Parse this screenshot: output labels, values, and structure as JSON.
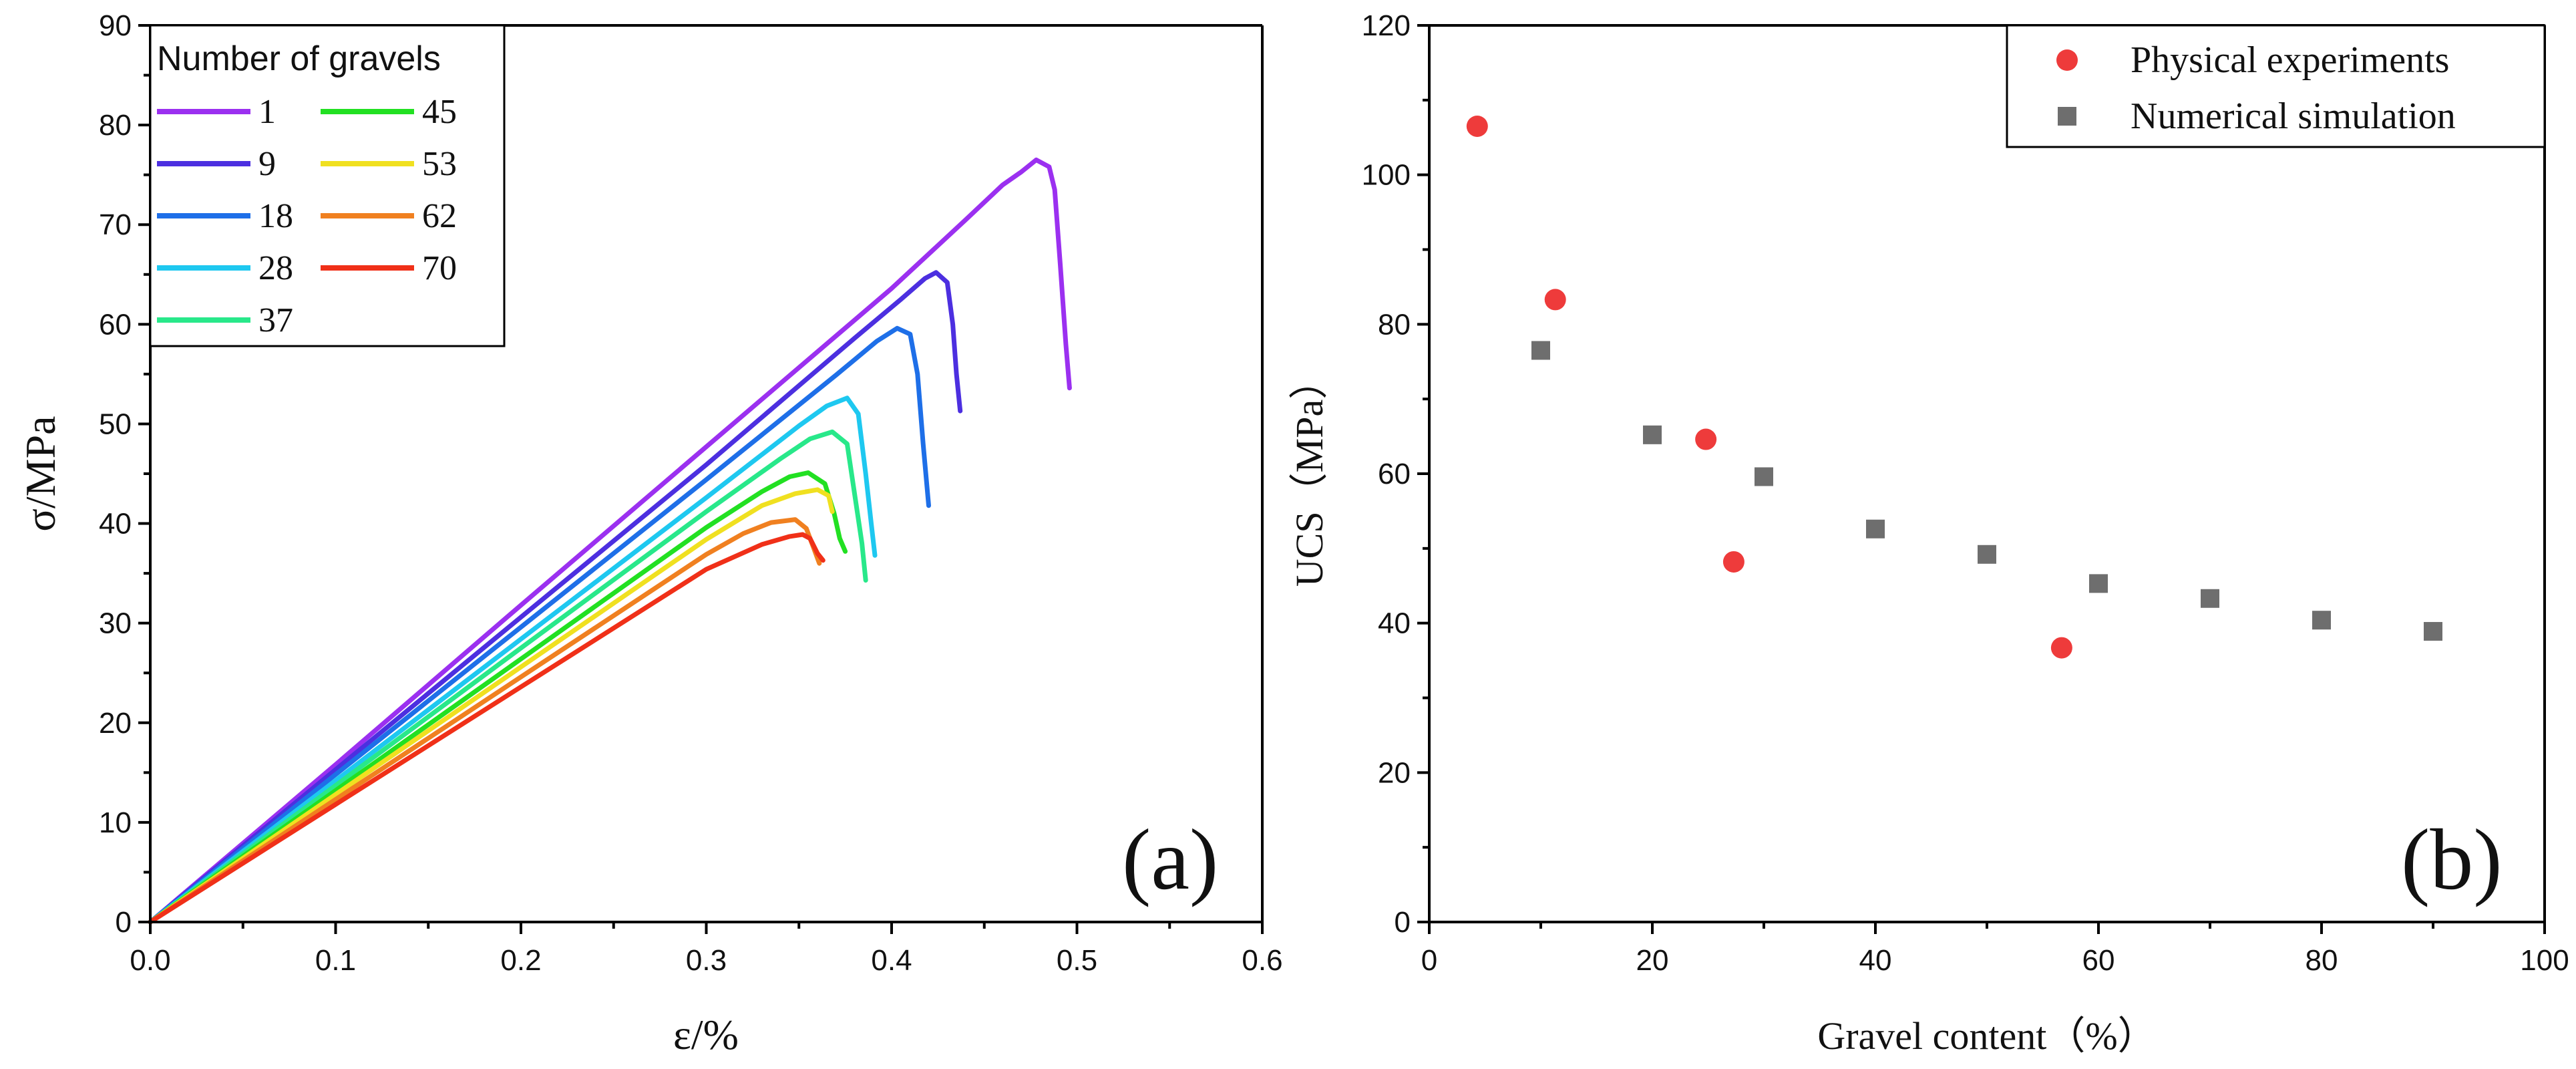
{
  "chart_data": [
    {
      "type": "line",
      "panel_label": "(a)",
      "xlabel": "ε/%",
      "ylabel": "σ/MPa",
      "xlim": [
        0.0,
        0.6
      ],
      "ylim": [
        0,
        90
      ],
      "xticks": [
        "0.0",
        "0.1",
        "0.2",
        "0.3",
        "0.4",
        "0.5",
        "0.6"
      ],
      "yticks": [
        "0",
        "10",
        "20",
        "30",
        "40",
        "50",
        "60",
        "70",
        "80",
        "90"
      ],
      "legend_title": "Number of gravels",
      "legend_position": "top-left",
      "series": [
        {
          "name": "1",
          "color": "#9B30F0",
          "points": [
            [
              0,
              0
            ],
            [
              0.1,
              15.8
            ],
            [
              0.2,
              31.8
            ],
            [
              0.3,
              47.7
            ],
            [
              0.4,
              63.6
            ],
            [
              0.44,
              70.5
            ],
            [
              0.46,
              74.0
            ],
            [
              0.47,
              75.3
            ],
            [
              0.478,
              76.5
            ],
            [
              0.485,
              75.8
            ],
            [
              0.488,
              73.5
            ],
            [
              0.491,
              66.0
            ],
            [
              0.494,
              58.0
            ],
            [
              0.496,
              53.6
            ]
          ]
        },
        {
          "name": "9",
          "color": "#4C2FE0",
          "points": [
            [
              0,
              0
            ],
            [
              0.1,
              15.3
            ],
            [
              0.2,
              30.6
            ],
            [
              0.3,
              45.9
            ],
            [
              0.38,
              58.6
            ],
            [
              0.405,
              62.5
            ],
            [
              0.418,
              64.6
            ],
            [
              0.424,
              65.2
            ],
            [
              0.43,
              64.2
            ],
            [
              0.433,
              60.0
            ],
            [
              0.435,
              55.0
            ],
            [
              0.437,
              51.3
            ]
          ]
        },
        {
          "name": "18",
          "color": "#1E6FE8",
          "points": [
            [
              0,
              0
            ],
            [
              0.1,
              14.8
            ],
            [
              0.2,
              29.6
            ],
            [
              0.3,
              44.4
            ],
            [
              0.37,
              54.9
            ],
            [
              0.392,
              58.3
            ],
            [
              0.403,
              59.6
            ],
            [
              0.41,
              59.0
            ],
            [
              0.414,
              55.0
            ],
            [
              0.417,
              48.0
            ],
            [
              0.42,
              41.8
            ]
          ]
        },
        {
          "name": "28",
          "color": "#1EC8F0",
          "points": [
            [
              0,
              0
            ],
            [
              0.1,
              14.2
            ],
            [
              0.2,
              28.4
            ],
            [
              0.3,
              42.6
            ],
            [
              0.35,
              49.8
            ],
            [
              0.365,
              51.8
            ],
            [
              0.376,
              52.6
            ],
            [
              0.382,
              51.0
            ],
            [
              0.386,
              45.0
            ],
            [
              0.389,
              40.0
            ],
            [
              0.391,
              36.8
            ]
          ]
        },
        {
          "name": "37",
          "color": "#28E88A",
          "points": [
            [
              0,
              0
            ],
            [
              0.1,
              13.7
            ],
            [
              0.2,
              27.5
            ],
            [
              0.3,
              41.2
            ],
            [
              0.34,
              46.5
            ],
            [
              0.356,
              48.5
            ],
            [
              0.368,
              49.2
            ],
            [
              0.376,
              48.0
            ],
            [
              0.38,
              43.0
            ],
            [
              0.384,
              38.0
            ],
            [
              0.386,
              34.3
            ]
          ]
        },
        {
          "name": "45",
          "color": "#22E022",
          "points": [
            [
              0,
              0
            ],
            [
              0.1,
              13.2
            ],
            [
              0.2,
              26.4
            ],
            [
              0.3,
              39.6
            ],
            [
              0.33,
              43.2
            ],
            [
              0.345,
              44.7
            ],
            [
              0.355,
              45.1
            ],
            [
              0.364,
              44.0
            ],
            [
              0.369,
              41.0
            ],
            [
              0.372,
              38.5
            ],
            [
              0.375,
              37.2
            ]
          ]
        },
        {
          "name": "53",
          "color": "#F0E020",
          "points": [
            [
              0,
              0
            ],
            [
              0.1,
              12.8
            ],
            [
              0.2,
              25.6
            ],
            [
              0.3,
              38.4
            ],
            [
              0.33,
              41.8
            ],
            [
              0.348,
              43.0
            ],
            [
              0.36,
              43.4
            ],
            [
              0.366,
              42.8
            ],
            [
              0.368,
              41.2
            ]
          ]
        },
        {
          "name": "62",
          "color": "#F08020",
          "points": [
            [
              0,
              0
            ],
            [
              0.1,
              12.3
            ],
            [
              0.2,
              24.6
            ],
            [
              0.3,
              36.9
            ],
            [
              0.32,
              39.0
            ],
            [
              0.335,
              40.1
            ],
            [
              0.348,
              40.4
            ],
            [
              0.354,
              39.5
            ],
            [
              0.358,
              37.5
            ],
            [
              0.361,
              36.0
            ]
          ]
        },
        {
          "name": "70",
          "color": "#F03018",
          "points": [
            [
              0,
              0
            ],
            [
              0.1,
              11.8
            ],
            [
              0.2,
              23.6
            ],
            [
              0.3,
              35.4
            ],
            [
              0.33,
              37.9
            ],
            [
              0.345,
              38.7
            ],
            [
              0.352,
              38.9
            ],
            [
              0.356,
              38.5
            ],
            [
              0.36,
              37.0
            ],
            [
              0.363,
              36.3
            ]
          ]
        }
      ]
    },
    {
      "type": "scatter",
      "panel_label": "(b)",
      "xlabel": "Gravel content（%）",
      "ylabel": "UCS（MPa）",
      "xlim": [
        0,
        100
      ],
      "ylim": [
        0,
        120
      ],
      "xticks": [
        "0",
        "20",
        "40",
        "60",
        "80",
        "100"
      ],
      "yticks": [
        "0",
        "20",
        "40",
        "60",
        "80",
        "100",
        "120"
      ],
      "legend_position": "top-right",
      "series": [
        {
          "name": "Physical experiments",
          "marker": "circle",
          "color": "#EE3B3B",
          "points": [
            [
              4.3,
              106.5
            ],
            [
              11.3,
              83.3
            ],
            [
              24.8,
              64.6
            ],
            [
              27.3,
              48.2
            ],
            [
              56.7,
              36.7
            ]
          ]
        },
        {
          "name": "Numerical simulation",
          "marker": "square",
          "color": "#6E6E6E",
          "points": [
            [
              10,
              76.5
            ],
            [
              20,
              65.2
            ],
            [
              30,
              59.6
            ],
            [
              40,
              52.6
            ],
            [
              50,
              49.2
            ],
            [
              60,
              45.3
            ],
            [
              70,
              43.3
            ],
            [
              80,
              40.4
            ],
            [
              90,
              38.9
            ]
          ]
        }
      ]
    }
  ]
}
